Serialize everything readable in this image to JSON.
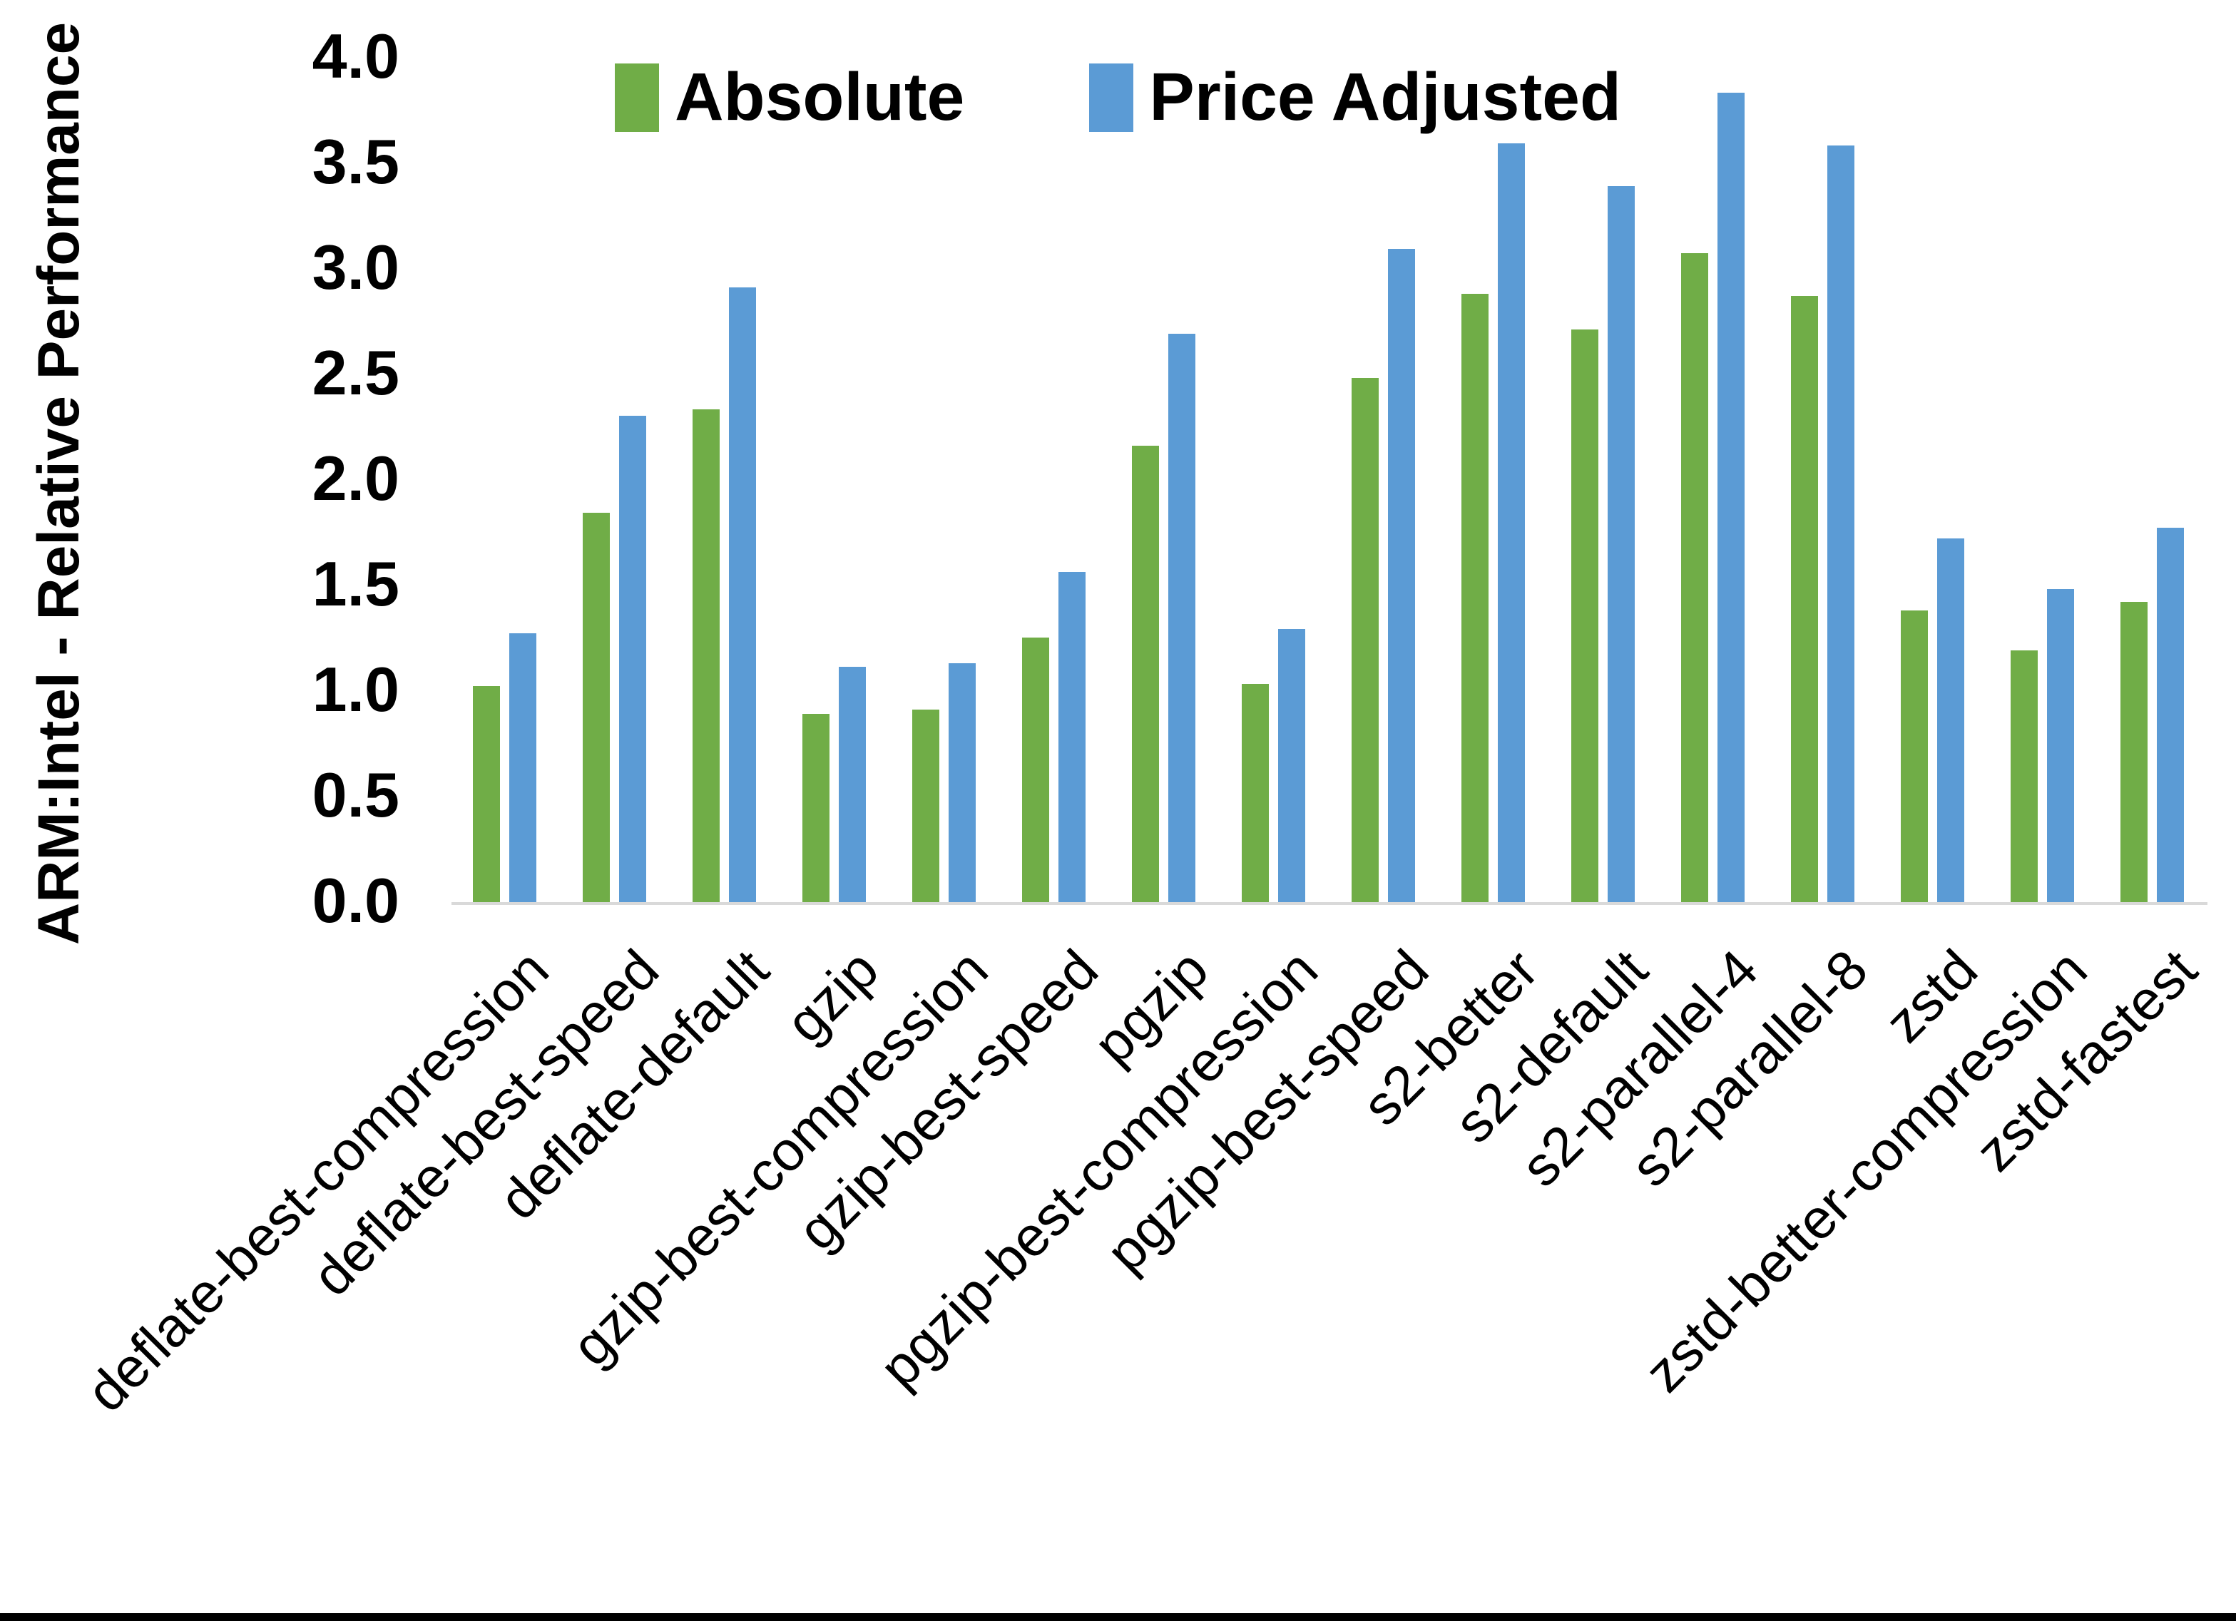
{
  "chart_data": {
    "type": "bar",
    "title": "",
    "ylabel": "ARM:Intel - Relative Performance",
    "xlabel": "",
    "ylim": [
      0.0,
      4.0
    ],
    "ytick_labels": [
      "0.0",
      "0.5",
      "1.0",
      "1.5",
      "2.0",
      "2.5",
      "3.0",
      "3.5",
      "4.0"
    ],
    "grid": false,
    "legend_position": "top-center",
    "axis_line_color": "#D9D9D9",
    "text_color": "#000000",
    "background_color": "#FFFFFF",
    "categories": [
      "deflate-best-compression",
      "deflate-best-speed",
      "deflate-default",
      "gzip",
      "gzip-best-compression",
      "gzip-best-speed",
      "pgzip",
      "pgzip-best-compression",
      "pgzip-best-speed",
      "s2-better",
      "s2-default",
      "s2-parallel-4",
      "s2-parallel-8",
      "zstd",
      "zstd-better-compression",
      "zstd-fastest"
    ],
    "series": [
      {
        "name": "Absolute",
        "color": "#70AD47",
        "values": [
          1.03,
          1.85,
          2.34,
          0.9,
          0.92,
          1.26,
          2.17,
          1.04,
          2.49,
          2.89,
          2.72,
          3.08,
          2.88,
          1.39,
          1.2,
          1.43
        ]
      },
      {
        "name": "Price Adjusted",
        "color": "#5B9BD5",
        "values": [
          1.28,
          2.31,
          2.92,
          1.12,
          1.14,
          1.57,
          2.7,
          1.3,
          3.1,
          3.6,
          3.4,
          3.84,
          3.59,
          1.73,
          1.49,
          1.78
        ]
      }
    ]
  }
}
